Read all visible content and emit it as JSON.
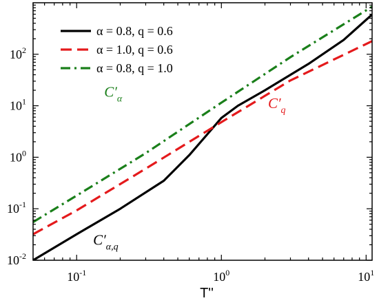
{
  "chart_data": {
    "type": "line",
    "title": "",
    "xlabel": "T''",
    "ylabel": "",
    "xscale": "log",
    "yscale": "log",
    "xlim": [
      0.05,
      11
    ],
    "ylim": [
      0.01,
      1000
    ],
    "grid": false,
    "legend_position": "top-left",
    "x_ticks": [
      {
        "value": 0.1,
        "base": "10",
        "exp": "-1"
      },
      {
        "value": 1,
        "base": "10",
        "exp": "0"
      },
      {
        "value": 10,
        "base": "10",
        "exp": "1"
      }
    ],
    "y_ticks": [
      {
        "value": 0.01,
        "base": "10",
        "exp": "-2"
      },
      {
        "value": 0.1,
        "base": "10",
        "exp": "-1"
      },
      {
        "value": 1,
        "base": "10",
        "exp": "0"
      },
      {
        "value": 10,
        "base": "10",
        "exp": "1"
      },
      {
        "value": 100,
        "base": "10",
        "exp": "2"
      }
    ],
    "series": [
      {
        "name": "α = 0.8, q = 0.6",
        "color": "#000000",
        "dash": "solid",
        "x": [
          0.05,
          0.1,
          0.2,
          0.4,
          0.6,
          0.8,
          1.0,
          1.3,
          2,
          4,
          7,
          11
        ],
        "y": [
          0.01,
          0.032,
          0.1,
          0.35,
          1.1,
          2.8,
          5.8,
          10,
          20,
          65,
          190,
          590
        ]
      },
      {
        "name": "α = 1.0, q = 0.6",
        "color": "#e41a1c",
        "dash": "dashed",
        "x": [
          0.05,
          0.1,
          0.3,
          1,
          3,
          11
        ],
        "y": [
          0.032,
          0.093,
          0.6,
          4.8,
          31,
          180
        ]
      },
      {
        "name": " α = 0.8, q = 1.0",
        "color": "#1a7f1a",
        "dash": "dashdot",
        "x": [
          0.05,
          0.1,
          0.3,
          1,
          3,
          11
        ],
        "y": [
          0.055,
          0.18,
          1.2,
          11.5,
          88,
          840
        ]
      }
    ],
    "annotations": [
      {
        "base": "C",
        "prime": "′",
        "sub": "α",
        "color": "#1a7f1a",
        "x": 0.155,
        "y": 15
      },
      {
        "base": "C",
        "prime": "′",
        "sub": "q",
        "color": "#e41a1c",
        "x": 2.1,
        "y": 9
      },
      {
        "base": "C",
        "prime": "′",
        "sub": "α,q",
        "color": "#000000",
        "x": 0.13,
        "y": 0.02
      }
    ]
  }
}
